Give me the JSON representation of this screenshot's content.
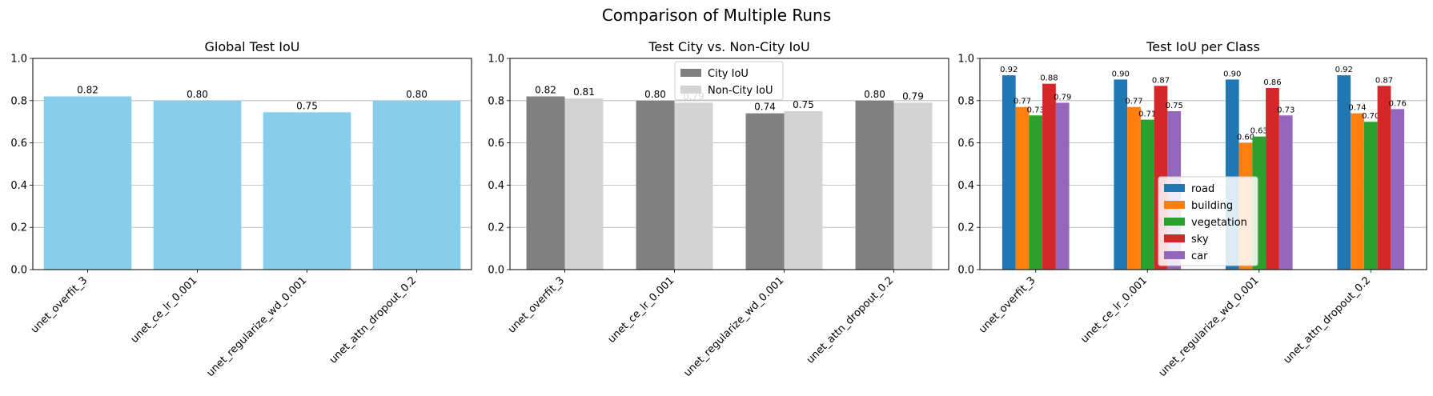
{
  "figure": {
    "suptitle": "Comparison of Multiple Runs"
  },
  "chart_data": [
    {
      "type": "bar",
      "title": "Global Test IoU",
      "categories": [
        "unet_overfit_3",
        "unet_ce_lr_0.001",
        "unet_regularize_wd_0.001",
        "unet_attn_dropout_0.2"
      ],
      "series": [
        {
          "values": [
            0.82,
            0.8,
            0.745,
            0.8
          ],
          "labels": [
            "0.82",
            "0.80",
            "0.75",
            "0.80"
          ],
          "color": "#87ceeb"
        }
      ],
      "ylim": [
        0,
        1.0
      ],
      "yticks": [
        "0.0",
        "0.2",
        "0.4",
        "0.6",
        "0.8",
        "1.0"
      ],
      "grid": "y",
      "legend": null
    },
    {
      "type": "bar",
      "title": "Test City vs. Non-City IoU",
      "categories": [
        "unet_overfit_3",
        "unet_ce_lr_0.001",
        "unet_regularize_wd_0.001",
        "unet_attn_dropout_0.2"
      ],
      "series": [
        {
          "name": "City IoU",
          "values": [
            0.82,
            0.8,
            0.74,
            0.8
          ],
          "labels": [
            "0.82",
            "0.80",
            "0.74",
            "0.80"
          ],
          "color": "#808080"
        },
        {
          "name": "Non-City IoU",
          "values": [
            0.81,
            0.79,
            0.75,
            0.79
          ],
          "labels": [
            "0.81",
            "0.79",
            "0.75",
            "0.79"
          ],
          "color": "#d3d3d3"
        }
      ],
      "ylim": [
        0,
        1.0
      ],
      "yticks": [
        "0.0",
        "0.2",
        "0.4",
        "0.6",
        "0.8",
        "1.0"
      ],
      "grid": "y",
      "legend": "upper-center"
    },
    {
      "type": "bar",
      "title": "Test IoU per Class",
      "categories": [
        "unet_overfit_3",
        "unet_ce_lr_0.001",
        "unet_regularize_wd_0.001",
        "unet_attn_dropout_0.2"
      ],
      "series": [
        {
          "name": "road",
          "values": [
            0.92,
            0.9,
            0.9,
            0.92
          ],
          "labels": [
            "0.92",
            "0.90",
            "0.90",
            "0.92"
          ],
          "color": "#1f77b4"
        },
        {
          "name": "building",
          "values": [
            0.77,
            0.77,
            0.6,
            0.74
          ],
          "labels": [
            "0.77",
            "0.77",
            "0.60",
            "0.74"
          ],
          "color": "#ff7f0e"
        },
        {
          "name": "vegetation",
          "values": [
            0.73,
            0.71,
            0.63,
            0.7
          ],
          "labels": [
            "0.73",
            "0.71",
            "0.63",
            "0.70"
          ],
          "color": "#2ca02c"
        },
        {
          "name": "sky",
          "values": [
            0.88,
            0.87,
            0.86,
            0.87
          ],
          "labels": [
            "0.88",
            "0.87",
            "0.86",
            "0.87"
          ],
          "color": "#d62728"
        },
        {
          "name": "car",
          "values": [
            0.79,
            0.75,
            0.73,
            0.76
          ],
          "labels": [
            "0.79",
            "0.75",
            "0.73",
            "0.76"
          ],
          "color": "#9467bd"
        }
      ],
      "ylim": [
        0,
        1.0
      ],
      "yticks": [
        "0.0",
        "0.2",
        "0.4",
        "0.6",
        "0.8",
        "1.0"
      ],
      "grid": "y",
      "legend": "lower-center"
    }
  ]
}
